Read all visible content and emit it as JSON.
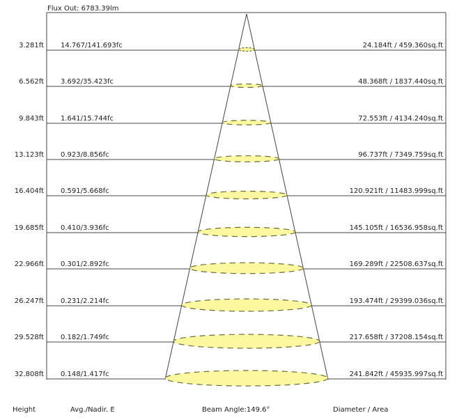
{
  "header": {
    "flux_out": "Flux Out: 6783.39lm"
  },
  "rows": [
    {
      "height": "3.281ft",
      "illuminance": "14.767/141.693fc",
      "diameter_area": "24.184ft / 459.360sq.ft"
    },
    {
      "height": "6.562ft",
      "illuminance": "3.692/35.423fc",
      "diameter_area": "48.368ft / 1837.440sq.ft"
    },
    {
      "height": "9.843ft",
      "illuminance": "1.641/15.744fc",
      "diameter_area": "72.553ft / 4134.240sq.ft"
    },
    {
      "height": "13.123ft",
      "illuminance": "0.923/8.856fc",
      "diameter_area": "96.737ft / 7349.759sq.ft"
    },
    {
      "height": "16.404ft",
      "illuminance": "0.591/5.668fc",
      "diameter_area": "120.921ft / 11483.999sq.ft"
    },
    {
      "height": "19.685ft",
      "illuminance": "0.410/3.936fc",
      "diameter_area": "145.105ft / 16536.958sq.ft"
    },
    {
      "height": "22.966ft",
      "illuminance": "0.301/2.892fc",
      "diameter_area": "169.289ft / 22508.637sq.ft"
    },
    {
      "height": "26.247ft",
      "illuminance": "0.231/2.214fc",
      "diameter_area": "193.474ft / 29399.036sq.ft"
    },
    {
      "height": "29.528ft",
      "illuminance": "0.182/1.749fc",
      "diameter_area": "217.658ft / 37208.154sq.ft"
    },
    {
      "height": "32.808ft",
      "illuminance": "0.148/1.417fc",
      "diameter_area": "241.842ft / 45935.997sq.ft"
    }
  ],
  "footer": {
    "height_label": "Height",
    "illuminance_label": "Avg./Nadir. E",
    "beam_angle_label": "Beam Angle:149.6°",
    "diameter_label": "Diameter / Area"
  },
  "colors": {
    "spot_fill": "#fcf8a0",
    "spot_stroke": "#6b6b3a",
    "line": "#444444"
  }
}
